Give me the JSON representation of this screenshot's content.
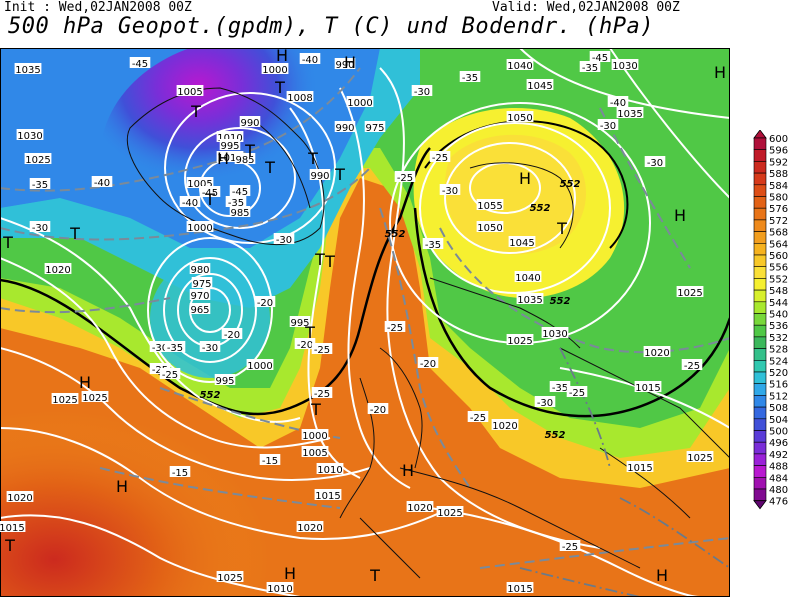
{
  "header": {
    "init": "Init : Wed,02JAN2008 00Z",
    "valid": "Valid: Wed,02JAN2008 00Z",
    "title": "500 hPa Geopot.(gpdm), T (C) und Bodendr. (hPa)"
  },
  "legend": {
    "levels": [
      "600",
      "596",
      "592",
      "588",
      "584",
      "580",
      "576",
      "572",
      "568",
      "564",
      "560",
      "556",
      "552",
      "548",
      "544",
      "540",
      "536",
      "532",
      "528",
      "524",
      "520",
      "516",
      "512",
      "508",
      "504",
      "500",
      "496",
      "492",
      "488",
      "484",
      "480",
      "476"
    ],
    "colors": [
      "#b0103a",
      "#c01a28",
      "#cc2a1e",
      "#d63a1a",
      "#dd4e16",
      "#e26216",
      "#e87418",
      "#ee8a1c",
      "#f29e1e",
      "#f6b21e",
      "#f8c828",
      "#fae038",
      "#f6f030",
      "#d8f02c",
      "#a8e82e",
      "#78d83a",
      "#50c846",
      "#3cb85c",
      "#34c08a",
      "#30c8b0",
      "#30c0d8",
      "#30a8e8",
      "#3088e8",
      "#3468e0",
      "#4050d8",
      "#5a3cd8",
      "#7a2ed8",
      "#9a22d8",
      "#b818d0",
      "#a010b0",
      "#800a90",
      "#600670"
    ]
  },
  "map_labels": {
    "pressure": [
      {
        "t": "1035"
      },
      {
        "t": "1030"
      },
      {
        "t": "1025"
      },
      {
        "t": "1020"
      },
      {
        "t": "1005"
      },
      {
        "t": "1005"
      },
      {
        "t": "1010"
      },
      {
        "t": "1015"
      },
      {
        "t": "995"
      },
      {
        "t": "990"
      },
      {
        "t": "985"
      },
      {
        "t": "1000"
      },
      {
        "t": "1008"
      },
      {
        "t": "1000"
      },
      {
        "t": "990"
      },
      {
        "t": "990"
      },
      {
        "t": "985"
      },
      {
        "t": "980"
      },
      {
        "t": "975"
      },
      {
        "t": "970"
      },
      {
        "t": "965"
      },
      {
        "t": "995"
      },
      {
        "t": "1000"
      },
      {
        "t": "995"
      },
      {
        "t": "1000"
      },
      {
        "t": "1005"
      },
      {
        "t": "1010"
      },
      {
        "t": "1015"
      },
      {
        "t": "1020"
      },
      {
        "t": "1025"
      },
      {
        "t": "1025"
      },
      {
        "t": "1020"
      },
      {
        "t": "1025"
      },
      {
        "t": "1015"
      },
      {
        "t": "1025"
      },
      {
        "t": "1040"
      },
      {
        "t": "1045"
      },
      {
        "t": "1050"
      },
      {
        "t": "1055"
      },
      {
        "t": "1050"
      },
      {
        "t": "1045"
      },
      {
        "t": "1040"
      },
      {
        "t": "1035"
      },
      {
        "t": "1030"
      },
      {
        "t": "1025"
      },
      {
        "t": "1020"
      },
      {
        "t": "1025"
      },
      {
        "t": "1020"
      },
      {
        "t": "1015"
      },
      {
        "t": "1025"
      },
      {
        "t": "1030"
      },
      {
        "t": "1035"
      },
      {
        "t": "1015"
      },
      {
        "t": "1015"
      },
      {
        "t": "1010"
      },
      {
        "t": "1020"
      },
      {
        "t": "990"
      },
      {
        "t": "975"
      },
      {
        "t": "1000"
      }
    ],
    "temperature": [
      {
        "t": "-45"
      },
      {
        "t": "-40"
      },
      {
        "t": "-45"
      },
      {
        "t": "-40"
      },
      {
        "t": "-35"
      },
      {
        "t": "-30"
      },
      {
        "t": "-40"
      },
      {
        "t": "-35"
      },
      {
        "t": "-30"
      },
      {
        "t": "-25"
      },
      {
        "t": "-30"
      },
      {
        "t": "-35"
      },
      {
        "t": "-30"
      },
      {
        "t": "-20"
      },
      {
        "t": "-20"
      },
      {
        "t": "-20"
      },
      {
        "t": "-25"
      },
      {
        "t": "-25"
      },
      {
        "t": "-25"
      },
      {
        "t": "-20"
      },
      {
        "t": "-25"
      },
      {
        "t": "-30"
      },
      {
        "t": "-35"
      },
      {
        "t": "-30"
      },
      {
        "t": "-25"
      },
      {
        "t": "-35"
      },
      {
        "t": "-45"
      },
      {
        "t": "-35"
      },
      {
        "t": "-30"
      },
      {
        "t": "-30"
      },
      {
        "t": "-25"
      },
      {
        "t": "-35"
      },
      {
        "t": "-30"
      },
      {
        "t": "-25"
      },
      {
        "t": "-15"
      },
      {
        "t": "-15"
      },
      {
        "t": "-25"
      },
      {
        "t": "-40"
      },
      {
        "t": "-45"
      },
      {
        "t": "-25"
      },
      {
        "t": "-20"
      },
      {
        "t": "-25"
      }
    ],
    "geopot": [
      {
        "t": "552"
      },
      {
        "t": "552"
      },
      {
        "t": "552"
      },
      {
        "t": "552"
      },
      {
        "t": "552"
      },
      {
        "t": "552"
      }
    ],
    "highs": [
      {
        "t": "H"
      },
      {
        "t": "H"
      },
      {
        "t": "H"
      },
      {
        "t": "H"
      },
      {
        "t": "H"
      },
      {
        "t": "H"
      },
      {
        "t": "H"
      },
      {
        "t": "H"
      },
      {
        "t": "H"
      },
      {
        "t": "H"
      },
      {
        "t": "H"
      }
    ],
    "lows": [
      {
        "t": "T"
      },
      {
        "t": "T"
      },
      {
        "t": "T"
      },
      {
        "t": "T"
      },
      {
        "t": "T"
      },
      {
        "t": "T"
      },
      {
        "t": "T"
      },
      {
        "t": "T"
      },
      {
        "t": "T"
      },
      {
        "t": "T"
      },
      {
        "t": "T"
      },
      {
        "t": "T"
      },
      {
        "t": "T"
      },
      {
        "t": "T"
      },
      {
        "t": "T"
      },
      {
        "t": "T"
      }
    ]
  }
}
